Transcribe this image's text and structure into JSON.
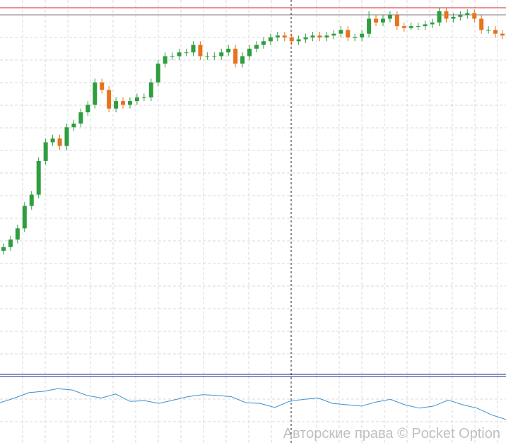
{
  "chart_data": {
    "type": "candlestick",
    "up_color": "#2e9e3f",
    "down_color": "#e8731c",
    "ylim": [
      0,
      100
    ],
    "open": [
      33,
      34,
      36,
      39,
      45,
      48,
      57,
      62,
      63,
      61,
      66,
      67,
      70,
      72,
      78,
      76,
      71,
      73,
      72,
      73,
      74,
      74,
      78,
      83,
      85,
      85,
      86,
      86,
      88,
      85,
      85,
      85,
      86,
      87,
      83,
      85,
      87,
      88,
      89,
      90,
      90.5,
      90,
      89,
      89.5,
      90,
      90.5,
      90,
      90.5,
      91,
      92,
      90,
      90,
      91,
      95,
      94,
      95,
      96,
      93,
      92.5,
      93,
      93,
      93.5,
      94,
      97,
      95,
      95.5,
      96,
      96.5,
      95,
      92,
      92,
      91
    ],
    "close": [
      34,
      36,
      39,
      45,
      48,
      57,
      62,
      63,
      61,
      66,
      67,
      70,
      72,
      78,
      76,
      71,
      73,
      72,
      73,
      74,
      74,
      78,
      83,
      85,
      85,
      86,
      86,
      88,
      85,
      85,
      85,
      86,
      87,
      83,
      85,
      87,
      88,
      89,
      90,
      90.5,
      90,
      89,
      89.5,
      90,
      90.5,
      90,
      90.5,
      91,
      92,
      90,
      90,
      91,
      95,
      94,
      95,
      96,
      93,
      92.5,
      93,
      93,
      93.5,
      94,
      97,
      95,
      95.5,
      96,
      96.5,
      95,
      92,
      92,
      91,
      90.5
    ],
    "high": [
      35,
      37,
      40,
      46,
      49,
      58,
      63,
      64,
      64,
      67,
      68,
      71,
      73,
      79,
      79,
      77,
      74,
      74,
      74,
      75,
      75,
      79,
      84,
      86,
      86,
      87,
      87,
      89,
      89,
      86,
      86,
      87,
      88,
      88,
      86,
      88,
      89,
      90,
      91,
      91.5,
      91.5,
      91,
      90.5,
      91,
      91.5,
      91.5,
      91.5,
      92,
      93,
      93,
      91,
      92,
      97,
      96,
      96,
      97,
      97,
      94,
      94,
      94,
      94.5,
      95,
      98,
      98,
      96.5,
      97,
      97.5,
      97.5,
      96,
      93,
      93,
      92
    ],
    "low": [
      32,
      33,
      35,
      38,
      44,
      47,
      56,
      61,
      60,
      60,
      65,
      66,
      69,
      71,
      75,
      70,
      70,
      71,
      71,
      72,
      73,
      73,
      77,
      82,
      84,
      84,
      85,
      85,
      84,
      84,
      84,
      84,
      85,
      82,
      82,
      84,
      86,
      87,
      88,
      89,
      89,
      88,
      88,
      88.5,
      89,
      89,
      89,
      89.5,
      90,
      89,
      89,
      89,
      90,
      93,
      93,
      94,
      92,
      91.5,
      92,
      92,
      92,
      92.5,
      93,
      94,
      94,
      94.5,
      95,
      94,
      91,
      91,
      90,
      89.5
    ],
    "indicator": {
      "ylim": [
        0,
        100
      ],
      "color": "#3a8fd0",
      "values": [
        63,
        70,
        78,
        80,
        84,
        82,
        74,
        70,
        76,
        65,
        66,
        62,
        67,
        72,
        75,
        74,
        72,
        63,
        62,
        56,
        65,
        68,
        70,
        62,
        60,
        58,
        64,
        68,
        60,
        55,
        58,
        67,
        60,
        55,
        45,
        38
      ]
    },
    "watermark": "Авторские права © Pocket Option"
  }
}
